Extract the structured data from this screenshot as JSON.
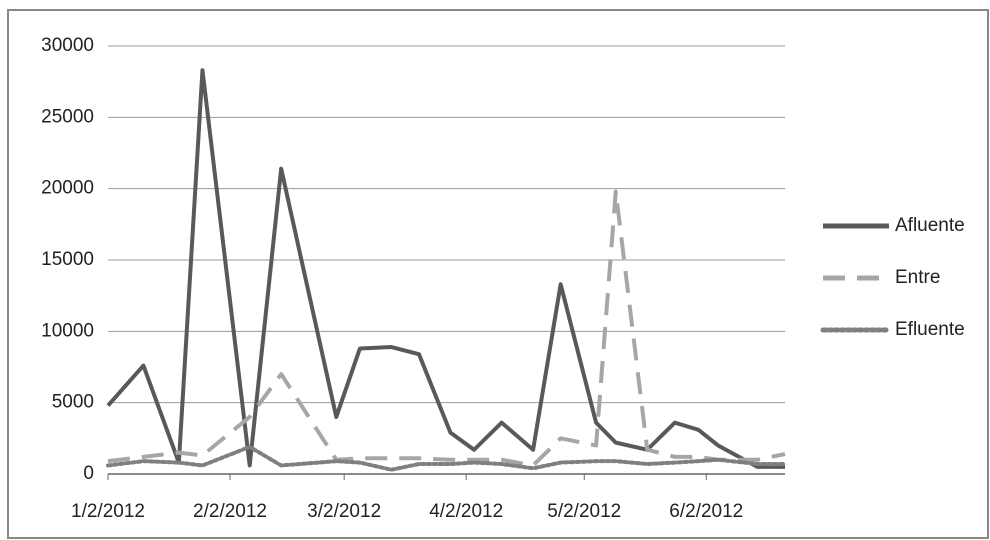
{
  "chart_data": {
    "type": "line",
    "x": [
      "1/2/2012",
      "1/11/2012",
      "1/20/2012",
      "1/26/2012",
      "2/7/2012",
      "2/15/2012",
      "2/29/2012",
      "3/6/2012",
      "3/14/2012",
      "3/21/2012",
      "3/29/2012",
      "4/4/2012",
      "4/11/2012",
      "4/19/2012",
      "4/26/2012",
      "5/5/2012",
      "5/10/2012",
      "5/18/2012",
      "5/25/2012",
      "5/31/2012",
      "6/5/2012",
      "6/15/2012",
      "6/22/2012"
    ],
    "series": [
      {
        "name": "Afluente",
        "color": "#595959",
        "dash": "solid",
        "values": [
          4800,
          7600,
          800,
          28300,
          600,
          21400,
          4000,
          8800,
          8900,
          8400,
          2900,
          1700,
          3600,
          1700,
          13300,
          3600,
          2200,
          1700,
          3600,
          3100,
          2000,
          500,
          500
        ]
      },
      {
        "name": "Entre",
        "color": "#a6a6a6",
        "dash": "dashed",
        "values": [
          900,
          1200,
          1500,
          1300,
          4000,
          7000,
          1000,
          1100,
          1100,
          1100,
          1000,
          1000,
          1000,
          600,
          2500,
          2000,
          19800,
          1700,
          1200,
          1200,
          1000,
          1000,
          1400
        ]
      },
      {
        "name": "Efluente",
        "color": "#7f7f7f",
        "dash": "dotted",
        "values": [
          600,
          900,
          800,
          600,
          1900,
          600,
          900,
          800,
          300,
          700,
          700,
          800,
          700,
          400,
          800,
          900,
          900,
          700,
          800,
          900,
          1000,
          700,
          700
        ]
      }
    ],
    "xlim": [
      "1/2/2012",
      "6/22/2012"
    ],
    "xticks": [
      "1/2/2012",
      "2/2/2012",
      "3/2/2012",
      "4/2/2012",
      "5/2/2012",
      "6/2/2012"
    ],
    "ylim": [
      0,
      30000
    ],
    "yticks": [
      0,
      5000,
      10000,
      15000,
      20000,
      25000,
      30000
    ],
    "grid": true,
    "legend": "right"
  }
}
